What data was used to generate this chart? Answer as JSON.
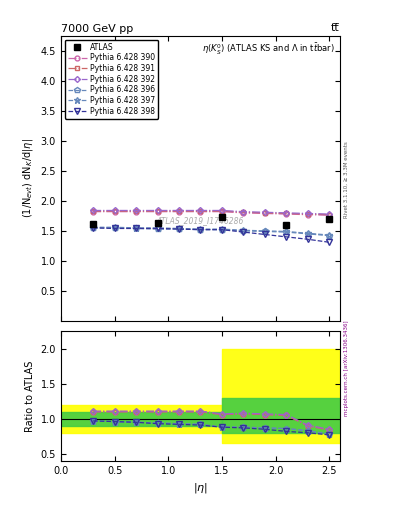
{
  "title": "7000 GeV pp",
  "title_right": "tt̅",
  "ylabel_main": "(1/N$_{evt}$) dN$_K$/d|$\\eta$|",
  "xlabel": "|$\\eta$|",
  "ylabel_ratio": "Ratio to ATLAS",
  "plot_title": "$\\eta(K^0_S)$ (ATLAS KS and $\\Lambda$ in t$\\bar{t}$bar)",
  "watermark": "ATLAS_2019_I1746286",
  "right_label": "mcplots.cern.ch [arXiv:1306.3436]",
  "rivet_label": "Rivet 3.1.10, ≥ 3.3M events",
  "ylim_main": [
    0,
    4.75
  ],
  "ylim_ratio": [
    0.4,
    2.25
  ],
  "yticks_main": [
    0.5,
    1.0,
    1.5,
    2.0,
    2.5,
    3.0,
    3.5,
    4.0,
    4.5
  ],
  "yticks_ratio": [
    0.5,
    1.0,
    1.5,
    2.0
  ],
  "xlim": [
    0,
    2.6
  ],
  "atlas_x": [
    0.3,
    0.9,
    1.5,
    2.1,
    2.5
  ],
  "atlas_y": [
    1.61,
    1.63,
    1.73,
    1.59,
    1.7
  ],
  "series": [
    {
      "label": "Pythia 6.428 390",
      "color": "#cc66aa",
      "marker": "o",
      "linestyle": "-.",
      "x": [
        0.3,
        0.5,
        0.7,
        0.9,
        1.1,
        1.3,
        1.5,
        1.7,
        1.9,
        2.1,
        2.3,
        2.5
      ],
      "y": [
        1.82,
        1.82,
        1.82,
        1.82,
        1.82,
        1.82,
        1.82,
        1.8,
        1.79,
        1.78,
        1.77,
        1.76
      ],
      "ratio": [
        1.1,
        1.1,
        1.1,
        1.1,
        1.1,
        1.1,
        1.06,
        1.07,
        1.06,
        1.05,
        0.9,
        0.84
      ]
    },
    {
      "label": "Pythia 6.428 391",
      "color": "#cc6666",
      "marker": "s",
      "linestyle": "-.",
      "x": [
        0.3,
        0.5,
        0.7,
        0.9,
        1.1,
        1.3,
        1.5,
        1.7,
        1.9,
        2.1,
        2.3,
        2.5
      ],
      "y": [
        1.83,
        1.83,
        1.83,
        1.83,
        1.83,
        1.83,
        1.83,
        1.81,
        1.8,
        1.79,
        1.78,
        1.77
      ],
      "ratio": [
        1.1,
        1.1,
        1.1,
        1.1,
        1.1,
        1.1,
        1.06,
        1.07,
        1.06,
        1.05,
        0.9,
        0.84
      ]
    },
    {
      "label": "Pythia 6.428 392",
      "color": "#9966cc",
      "marker": "D",
      "linestyle": "-.",
      "x": [
        0.3,
        0.5,
        0.7,
        0.9,
        1.1,
        1.3,
        1.5,
        1.7,
        1.9,
        2.1,
        2.3,
        2.5
      ],
      "y": [
        1.84,
        1.84,
        1.84,
        1.84,
        1.84,
        1.84,
        1.84,
        1.82,
        1.81,
        1.8,
        1.79,
        1.78
      ],
      "ratio": [
        1.11,
        1.11,
        1.11,
        1.11,
        1.11,
        1.11,
        1.07,
        1.08,
        1.07,
        1.06,
        0.91,
        0.85
      ]
    },
    {
      "label": "Pythia 6.428 396",
      "color": "#6688bb",
      "marker": "p",
      "linestyle": "--",
      "x": [
        0.3,
        0.5,
        0.7,
        0.9,
        1.1,
        1.3,
        1.5,
        1.7,
        1.9,
        2.1,
        2.3,
        2.5
      ],
      "y": [
        1.55,
        1.55,
        1.54,
        1.53,
        1.53,
        1.52,
        1.52,
        1.5,
        1.49,
        1.48,
        1.45,
        1.42
      ],
      "ratio": [
        0.97,
        0.96,
        0.95,
        0.94,
        0.93,
        0.92,
        0.88,
        0.88,
        0.87,
        0.86,
        0.83,
        0.78
      ]
    },
    {
      "label": "Pythia 6.428 397",
      "color": "#6688bb",
      "marker": "*",
      "linestyle": "--",
      "x": [
        0.3,
        0.5,
        0.7,
        0.9,
        1.1,
        1.3,
        1.5,
        1.7,
        1.9,
        2.1,
        2.3,
        2.5
      ],
      "y": [
        1.56,
        1.56,
        1.55,
        1.55,
        1.54,
        1.53,
        1.53,
        1.51,
        1.5,
        1.49,
        1.46,
        1.43
      ],
      "ratio": [
        0.97,
        0.96,
        0.95,
        0.94,
        0.93,
        0.92,
        0.88,
        0.88,
        0.87,
        0.86,
        0.83,
        0.78
      ]
    },
    {
      "label": "Pythia 6.428 398",
      "color": "#333399",
      "marker": "v",
      "linestyle": "--",
      "x": [
        0.3,
        0.5,
        0.7,
        0.9,
        1.1,
        1.3,
        1.5,
        1.7,
        1.9,
        2.1,
        2.3,
        2.5
      ],
      "y": [
        1.55,
        1.54,
        1.54,
        1.54,
        1.53,
        1.52,
        1.52,
        1.48,
        1.44,
        1.4,
        1.36,
        1.31
      ],
      "ratio": [
        0.97,
        0.96,
        0.95,
        0.93,
        0.92,
        0.91,
        0.88,
        0.87,
        0.85,
        0.82,
        0.8,
        0.77
      ]
    }
  ],
  "band_yellow_1": {
    "xlo": 0.0,
    "xhi": 1.5,
    "ylow": 0.8,
    "yhigh": 1.2
  },
  "band_green_1": {
    "xlo": 0.0,
    "xhi": 1.5,
    "ylow": 0.9,
    "yhigh": 1.1
  },
  "band_yellow_2": {
    "xlo": 1.5,
    "xhi": 2.6,
    "ylow": 0.65,
    "yhigh": 2.0
  },
  "band_green_2": {
    "xlo": 1.5,
    "xhi": 2.6,
    "ylow": 0.8,
    "yhigh": 1.3
  }
}
